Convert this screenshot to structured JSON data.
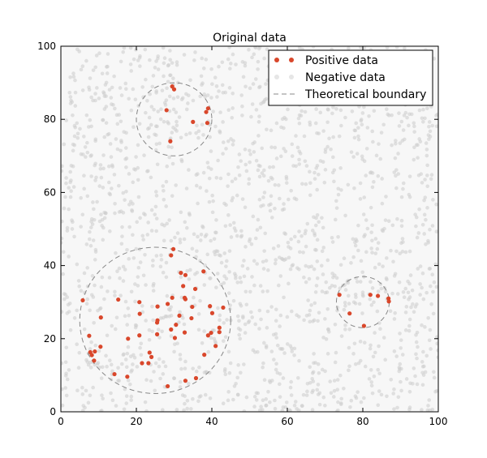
{
  "chart_data": {
    "type": "scatter",
    "title": "Original data",
    "xlabel": "",
    "ylabel": "",
    "xlim": [
      0,
      100
    ],
    "ylim": [
      0,
      100
    ],
    "xticks": [
      "0",
      "20",
      "40",
      "60",
      "80",
      "100"
    ],
    "yticks": [
      "0",
      "20",
      "40",
      "60",
      "80",
      "100"
    ],
    "grid": false,
    "legend_position": "top-right",
    "colors": {
      "positive": "#d9472b",
      "negative": "#cccccc",
      "boundary": "#888888",
      "background": "#f7f7f7"
    },
    "series": [
      {
        "name": "Positive data",
        "style": "point",
        "points": [
          [
            29.5,
            89.0
          ],
          [
            30.0,
            88.2
          ],
          [
            28.0,
            82.5
          ],
          [
            39.0,
            83.0
          ],
          [
            38.5,
            82.0
          ],
          [
            35.0,
            79.3
          ],
          [
            38.8,
            79.0
          ],
          [
            29.0,
            74.0
          ],
          [
            5.8,
            30.5
          ],
          [
            15.2,
            30.7
          ],
          [
            20.8,
            30.0
          ],
          [
            20.9,
            26.8
          ],
          [
            10.6,
            25.8
          ],
          [
            7.5,
            20.8
          ],
          [
            10.5,
            17.8
          ],
          [
            7.8,
            16.3
          ],
          [
            8.2,
            15.5
          ],
          [
            8.8,
            14.0
          ],
          [
            9.0,
            16.5
          ],
          [
            17.8,
            20.0
          ],
          [
            20.8,
            20.9
          ],
          [
            21.5,
            13.3
          ],
          [
            23.5,
            16.2
          ],
          [
            24.0,
            15.0
          ],
          [
            23.2,
            13.3
          ],
          [
            25.5,
            24.4
          ],
          [
            25.6,
            25.0
          ],
          [
            25.6,
            28.8
          ],
          [
            25.5,
            21.2
          ],
          [
            28.3,
            29.5
          ],
          [
            29.5,
            31.2
          ],
          [
            29.2,
            42.8
          ],
          [
            29.8,
            44.5
          ],
          [
            31.8,
            38.0
          ],
          [
            33.0,
            37.4
          ],
          [
            32.4,
            34.4
          ],
          [
            32.8,
            31.2
          ],
          [
            33.0,
            30.8
          ],
          [
            34.8,
            28.7
          ],
          [
            35.6,
            33.6
          ],
          [
            29.2,
            22.5
          ],
          [
            30.5,
            23.8
          ],
          [
            30.2,
            20.2
          ],
          [
            31.4,
            26.3
          ],
          [
            32.8,
            21.7
          ],
          [
            34.6,
            25.6
          ],
          [
            37.8,
            38.4
          ],
          [
            39.5,
            28.9
          ],
          [
            40.1,
            27.0
          ],
          [
            39.8,
            21.6
          ],
          [
            39.0,
            20.9
          ],
          [
            42.0,
            23.0
          ],
          [
            42.0,
            21.8
          ],
          [
            43.0,
            28.5
          ],
          [
            41.0,
            18.0
          ],
          [
            38.0,
            15.6
          ],
          [
            35.8,
            9.2
          ],
          [
            33.0,
            8.5
          ],
          [
            28.3,
            7.0
          ],
          [
            14.2,
            10.3
          ],
          [
            17.6,
            9.6
          ],
          [
            73.8,
            32.0
          ],
          [
            82.0,
            32.0
          ],
          [
            84.0,
            31.7
          ],
          [
            86.8,
            31.0
          ],
          [
            86.9,
            30.2
          ],
          [
            76.5,
            26.9
          ],
          [
            80.3,
            23.5
          ]
        ]
      },
      {
        "name": "Negative data",
        "style": "point",
        "count": 1800,
        "seed": 12345,
        "range": [
          0,
          100
        ]
      },
      {
        "name": "Theoretical boundary",
        "style": "dashed-circle",
        "circles": [
          {
            "cx": 30,
            "cy": 80,
            "r": 10
          },
          {
            "cx": 25,
            "cy": 25,
            "r": 20
          },
          {
            "cx": 80,
            "cy": 30,
            "r": 7
          }
        ]
      }
    ]
  }
}
